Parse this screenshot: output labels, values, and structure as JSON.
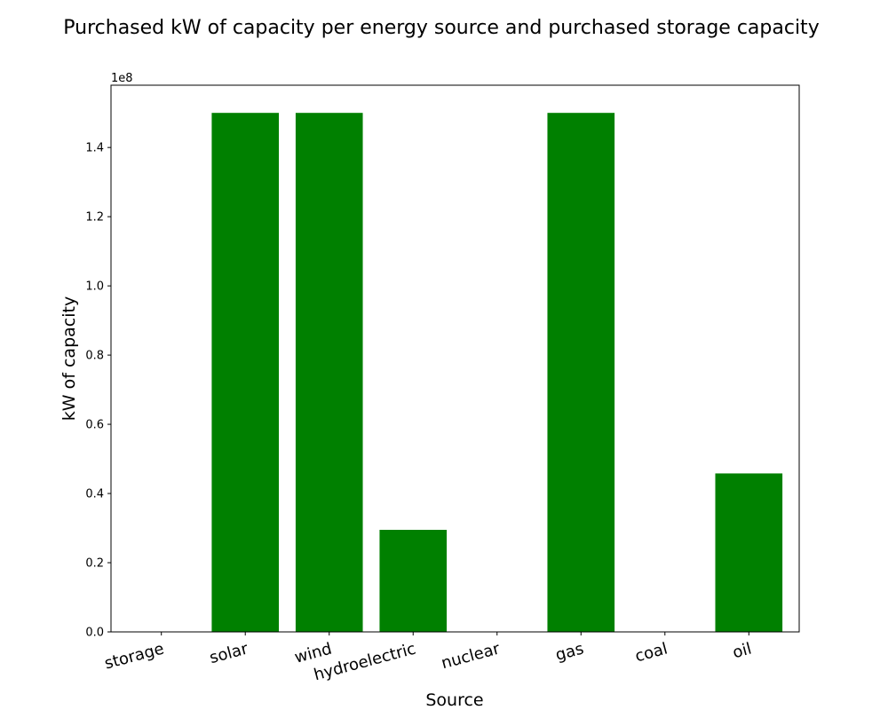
{
  "chart_data": {
    "type": "bar",
    "title": "Purchased kW of capacity per energy source and purchased storage capacity",
    "xlabel": "Source",
    "ylabel": "kW of capacity",
    "categories": [
      "storage",
      "solar",
      "wind",
      "hydroelectric",
      "nuclear",
      "gas",
      "coal",
      "oil"
    ],
    "values": [
      0,
      150000000,
      150000000,
      29500000,
      0,
      150000000,
      0,
      45800000
    ],
    "ylim": [
      0,
      158000000
    ],
    "yticks": [
      0,
      20000000,
      40000000,
      60000000,
      80000000,
      100000000,
      120000000,
      140000000
    ],
    "ytick_labels": [
      "0.0",
      "0.2",
      "0.4",
      "0.6",
      "0.8",
      "1.0",
      "1.2",
      "1.4"
    ],
    "y_offset_label": "1e8",
    "grid": false,
    "bar_color": "#008000"
  }
}
